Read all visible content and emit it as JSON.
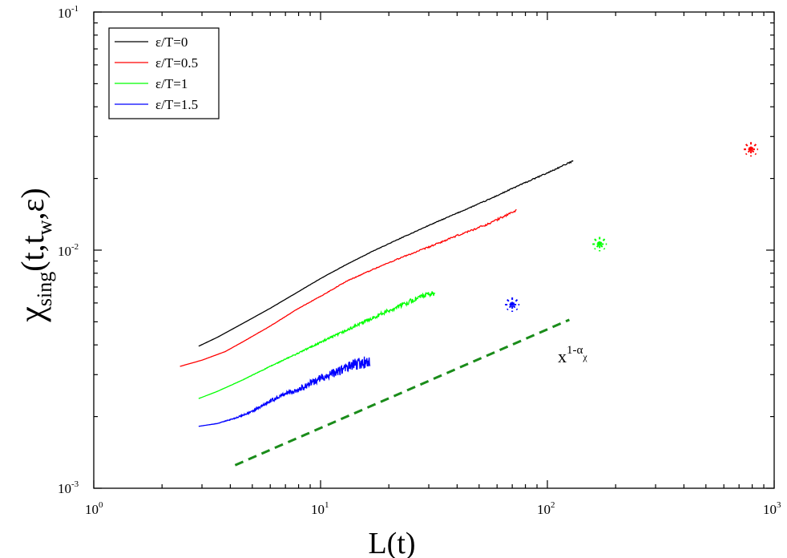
{
  "chart_data": {
    "type": "line",
    "title": "",
    "xlabel": "L(t)",
    "ylabel": {
      "symbol": "χ",
      "sub": "sing",
      "args_open": "(t,t",
      "args_sub": "w",
      "args_close": ",ε)"
    },
    "xscale": "log",
    "yscale": "log",
    "xlim": [
      1,
      1000
    ],
    "ylim": [
      0.001,
      0.1
    ],
    "grid": false,
    "legend_position": "top-left",
    "x_ticks": [
      {
        "base": "10",
        "exp": "0",
        "value": 1
      },
      {
        "base": "10",
        "exp": "1",
        "value": 10
      },
      {
        "base": "10",
        "exp": "2",
        "value": 100
      },
      {
        "base": "10",
        "exp": "3",
        "value": 1000
      }
    ],
    "y_ticks": [
      {
        "base": "10",
        "exp": "-3",
        "value": 0.001
      },
      {
        "base": "10",
        "exp": "-2",
        "value": 0.01
      },
      {
        "base": "10",
        "exp": "-1",
        "value": 0.1
      }
    ],
    "series": [
      {
        "name": "ε/T=0",
        "color": "#000000",
        "noise": 0.003,
        "x": [
          2.9,
          3.5,
          4.5,
          6,
          8,
          10,
          13,
          17,
          22,
          30,
          40,
          55,
          75,
          100,
          130
        ],
        "y": [
          0.00395,
          0.0043,
          0.0049,
          0.0057,
          0.0067,
          0.0076,
          0.0087,
          0.0099,
          0.0111,
          0.0127,
          0.0143,
          0.0163,
          0.0187,
          0.0211,
          0.0237
        ]
      },
      {
        "name": "ε/T=0.5",
        "color": "#ff0000",
        "noise": 0.005,
        "x": [
          2.4,
          3,
          3.8,
          4.5,
          6,
          8,
          10,
          13,
          17,
          22,
          30,
          40,
          55,
          73
        ],
        "y": [
          0.00325,
          0.00345,
          0.00375,
          0.0041,
          0.0048,
          0.0057,
          0.0064,
          0.0074,
          0.0083,
          0.0092,
          0.0103,
          0.0115,
          0.0129,
          0.0147
        ]
      },
      {
        "name": "ε/T=1",
        "color": "#00ff00",
        "noise": 0.012,
        "x": [
          2.9,
          3.5,
          4.5,
          6,
          8,
          10,
          13,
          17,
          22,
          28,
          32
        ],
        "y": [
          0.00238,
          0.00255,
          0.00284,
          0.00325,
          0.0037,
          0.0041,
          0.0046,
          0.0052,
          0.0058,
          0.0064,
          0.0066
        ]
      },
      {
        "name": "ε/T=1.5",
        "color": "#0000ff",
        "noise": 0.028,
        "x": [
          2.9,
          3.5,
          4.2,
          5,
          6,
          7,
          8,
          10,
          12,
          14,
          16.5
        ],
        "y": [
          0.00182,
          0.00187,
          0.00197,
          0.0021,
          0.00232,
          0.0025,
          0.0026,
          0.0029,
          0.0031,
          0.0033,
          0.0034
        ]
      }
    ],
    "markers": [
      {
        "x": 70,
        "y": 0.0059,
        "color": "#0000ff"
      },
      {
        "x": 170,
        "y": 0.0106,
        "color": "#00ff00"
      },
      {
        "x": 790,
        "y": 0.0265,
        "color": "#ff0000"
      }
    ],
    "guide_line": {
      "x": [
        4.2,
        125
      ],
      "y": [
        0.00125,
        0.0051
      ],
      "color": "#1a8c1a",
      "style": "dashed"
    },
    "annotation": {
      "base": "x",
      "sup": "1-α",
      "sup_sub": "χ",
      "x": 110,
      "y": 0.0037
    }
  }
}
